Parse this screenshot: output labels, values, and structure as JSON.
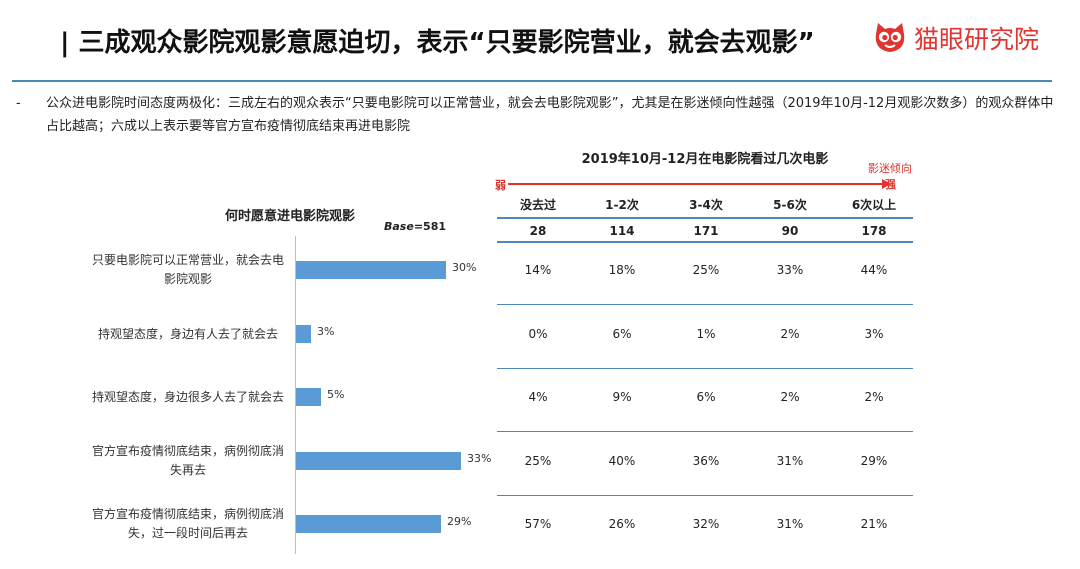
{
  "header": {
    "title": "| 三成观众影院观影意愿迫切，表示“只要影院营业，就会去观影”",
    "logo_text": "猫眼研究院",
    "brand_color": "#e2342f",
    "accent_color": "#4a88bf"
  },
  "note": {
    "bullet": "-",
    "text": "公众进电影院时间态度两极化：三成左右的观众表示“只要电影院可以正常营业，就会去电影院观影”，尤其是在影迷倾向性越强（2019年10月-12月观影次数多）的观众群体中占比越高；六成以上表示要等官方宣布疫情彻底结束再进电影院"
  },
  "chart_data": [
    {
      "type": "bar",
      "orientation": "horizontal",
      "title": "何时愿意进电影院观影",
      "base_label": "Base",
      "base_value": "=581",
      "categories": [
        "只要电影院可以正常营业，就会去电影院观影",
        "持观望态度，身边有人去了就会去",
        "持观望态度，身边很多人去了就会去",
        "官方宣布疫情彻底结束，病例彻底消失再去",
        "官方宣布疫情彻底结束，病例彻底消失，过一段时间后再去"
      ],
      "values": [
        30,
        3,
        5,
        33,
        29
      ],
      "value_labels": [
        "30%",
        "3%",
        "5%",
        "33%",
        "29%"
      ],
      "unit": "%",
      "bar_color": "#5b9bd5"
    },
    {
      "type": "table",
      "title": "2019年10月-12月在电影院看过几次电影",
      "arrow": {
        "weak_label": "弱",
        "strong_label": "强",
        "trend_label": "影迷倾向"
      },
      "columns": [
        "没去过",
        "1-2次",
        "3-4次",
        "5-6次",
        "6次以上"
      ],
      "bases": [
        "28",
        "114",
        "171",
        "90",
        "178"
      ],
      "rows": [
        [
          "14%",
          "18%",
          "25%",
          "33%",
          "44%"
        ],
        [
          "0%",
          "6%",
          "1%",
          "2%",
          "3%"
        ],
        [
          "4%",
          "9%",
          "6%",
          "2%",
          "2%"
        ],
        [
          "25%",
          "40%",
          "36%",
          "31%",
          "29%"
        ],
        [
          "57%",
          "26%",
          "32%",
          "31%",
          "21%"
        ]
      ]
    }
  ]
}
